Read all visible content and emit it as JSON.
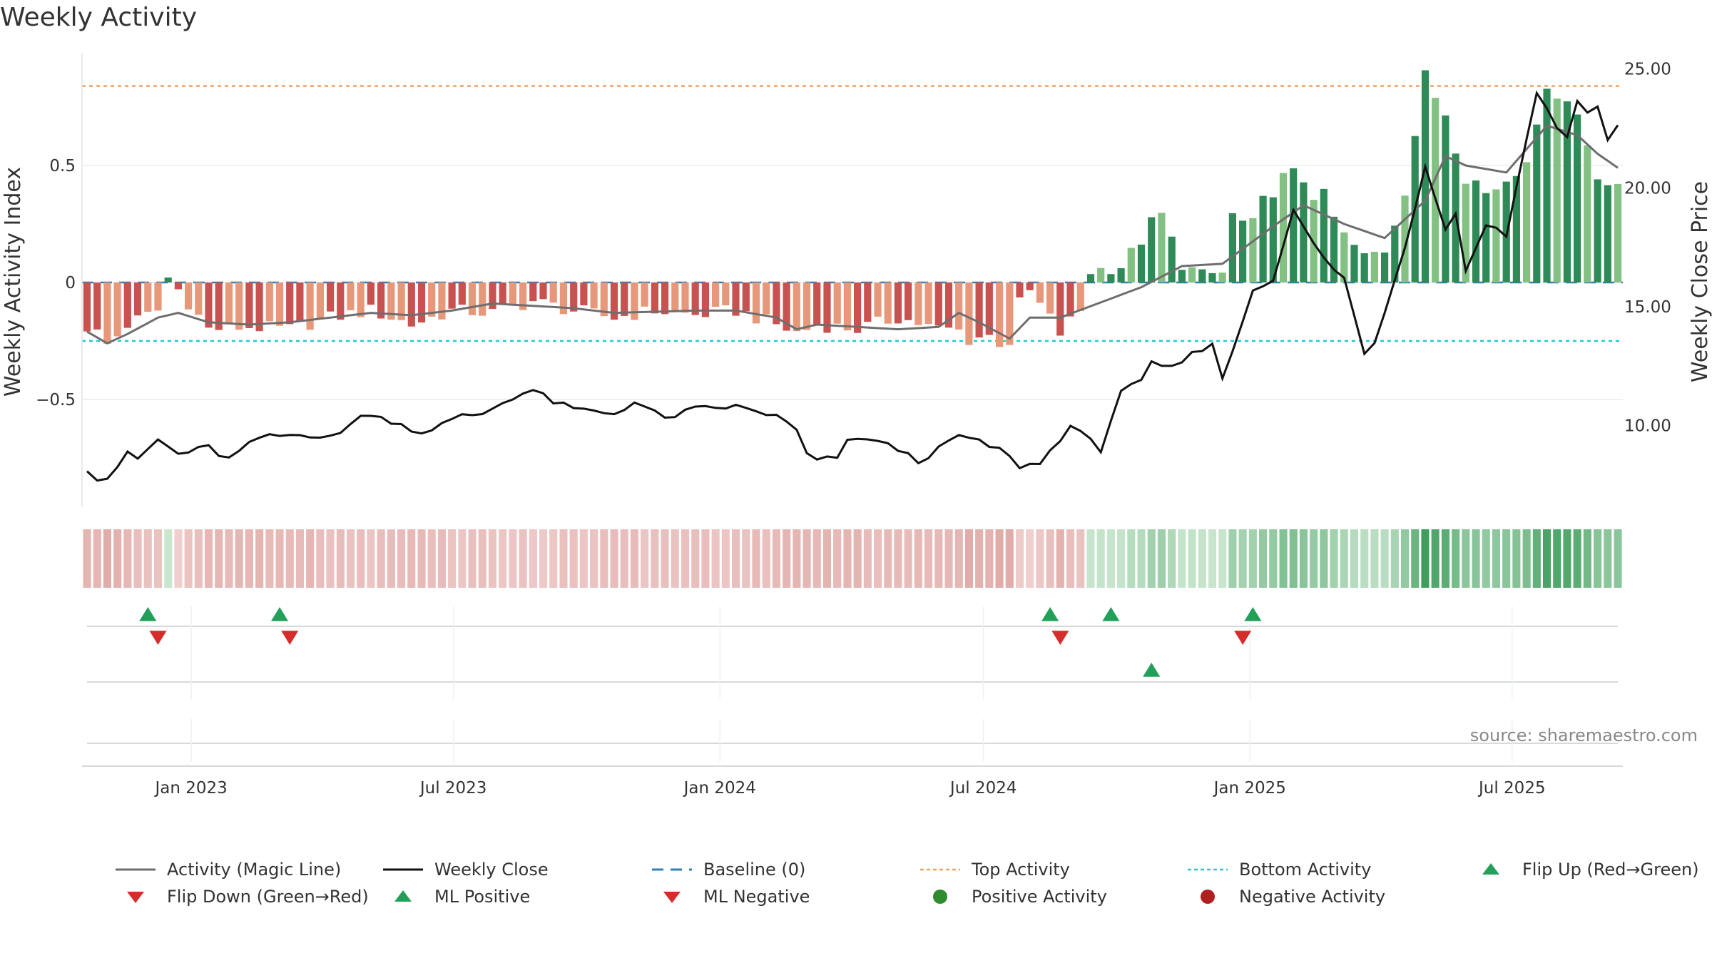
{
  "title": "Weekly Activity",
  "source": "source: sharemaestro.com",
  "colors": {
    "strong_red": "#c85250",
    "light_red": "#e8987a",
    "strong_green": "#2e8b57",
    "light_green": "#82c182",
    "magic": "#6e6e6e",
    "close": "#111111",
    "baseline": "#2f7fb8",
    "top": "#f0a060",
    "bottom": "#20c8d8",
    "flip_up": "#22a05a",
    "flip_down": "#d62c2c",
    "pos_dot": "#2e8b2e",
    "neg_dot": "#b02020"
  },
  "legend": [
    {
      "label": "Activity (Magic Line)",
      "icon": "solid-gray-line"
    },
    {
      "label": "Weekly Close",
      "icon": "solid-black-line"
    },
    {
      "label": "Baseline (0)",
      "icon": "dashed-blue-line"
    },
    {
      "label": "Top Activity",
      "icon": "dotted-orange-line"
    },
    {
      "label": "Bottom Activity",
      "icon": "dotted-cyan-line"
    },
    {
      "label": "Flip Up (Red→Green)",
      "icon": "green-up-triangle"
    },
    {
      "label": "Flip Down (Green→Red)",
      "icon": "red-down-triangle"
    },
    {
      "label": "ML Positive",
      "icon": "green-up-triangle"
    },
    {
      "label": "ML Negative",
      "icon": "red-down-triangle"
    },
    {
      "label": "Positive Activity",
      "icon": "green-dot"
    },
    {
      "label": "Negative Activity",
      "icon": "red-dot"
    }
  ],
  "chart_data": {
    "type": "bar",
    "title": "Weekly Activity",
    "ylabel": "Weekly Activity Index",
    "y2label": "Weekly Close Price",
    "ylim": [
      -0.97,
      0.97
    ],
    "y2lim": [
      6.6,
      25.65
    ],
    "yticks": [
      {
        "v": 0.5,
        "label": "0.5"
      },
      {
        "v": 0,
        "label": "0"
      },
      {
        "v": -0.5,
        "label": "−0.5"
      }
    ],
    "y2ticks": [
      "10.00",
      "15.00",
      "20.00",
      "25.00"
    ],
    "x_start": "2022-10-21",
    "x_end": "2025-09-12",
    "x_step_weeks": 1,
    "xtick_labels": [
      "Jan 2023",
      "Jul 2023",
      "Jan 2024",
      "Jul 2024",
      "Jan 2025",
      "Jul 2025"
    ],
    "xtick_dates": [
      "2023-01-01",
      "2023-07-01",
      "2024-01-01",
      "2024-07-01",
      "2025-01-01",
      "2025-07-01"
    ],
    "top_activity": 0.84,
    "bottom_activity": -0.25,
    "baseline": 0,
    "activity_anchors": [
      [
        0,
        -0.19
      ],
      [
        2,
        -0.27
      ],
      [
        4,
        -0.18
      ],
      [
        7,
        -0.12
      ],
      [
        8,
        0.02
      ],
      [
        9,
        -0.03
      ],
      [
        12,
        -0.2
      ],
      [
        16,
        -0.19
      ],
      [
        20,
        -0.2
      ],
      [
        24,
        -0.15
      ],
      [
        28,
        -0.12
      ],
      [
        32,
        -0.18
      ],
      [
        36,
        -0.12
      ],
      [
        40,
        -0.13
      ],
      [
        44,
        -0.08
      ],
      [
        48,
        -0.12
      ],
      [
        52,
        -0.15
      ],
      [
        56,
        -0.12
      ],
      [
        60,
        -0.14
      ],
      [
        64,
        -0.12
      ],
      [
        68,
        -0.18
      ],
      [
        70,
        -0.22
      ],
      [
        72,
        -0.18
      ],
      [
        76,
        -0.2
      ],
      [
        80,
        -0.15
      ],
      [
        84,
        -0.2
      ],
      [
        88,
        -0.23
      ],
      [
        91,
        -0.24
      ],
      [
        92,
        -0.09
      ],
      [
        93,
        -0.04
      ],
      [
        96,
        -0.21
      ],
      [
        98,
        -0.12
      ],
      [
        99,
        0.05
      ],
      [
        102,
        0.07
      ],
      [
        104,
        0.18
      ],
      [
        106,
        0.28
      ],
      [
        108,
        0.08
      ],
      [
        110,
        0.03
      ],
      [
        112,
        0.04
      ],
      [
        113,
        0.28
      ],
      [
        115,
        0.22
      ],
      [
        117,
        0.42
      ],
      [
        120,
        0.45
      ],
      [
        122,
        0.34
      ],
      [
        124,
        0.2
      ],
      [
        126,
        0.11
      ],
      [
        128,
        0.14
      ],
      [
        130,
        0.42
      ],
      [
        132,
        0.86
      ],
      [
        134,
        0.74
      ],
      [
        136,
        0.48
      ],
      [
        138,
        0.38
      ],
      [
        140,
        0.45
      ],
      [
        143,
        0.62
      ],
      [
        144,
        0.88
      ],
      [
        145,
        0.82
      ],
      [
        147,
        0.72
      ],
      [
        149,
        0.49
      ],
      [
        151,
        0.37
      ],
      [
        152,
        0.31
      ]
    ],
    "magic_anchors": [
      [
        0,
        -0.21
      ],
      [
        2,
        -0.26
      ],
      [
        4,
        -0.22
      ],
      [
        7,
        -0.15
      ],
      [
        9,
        -0.13
      ],
      [
        12,
        -0.17
      ],
      [
        16,
        -0.18
      ],
      [
        20,
        -0.17
      ],
      [
        24,
        -0.15
      ],
      [
        28,
        -0.13
      ],
      [
        32,
        -0.14
      ],
      [
        36,
        -0.12
      ],
      [
        40,
        -0.09
      ],
      [
        48,
        -0.11
      ],
      [
        52,
        -0.13
      ],
      [
        60,
        -0.12
      ],
      [
        64,
        -0.12
      ],
      [
        68,
        -0.15
      ],
      [
        70,
        -0.2
      ],
      [
        72,
        -0.18
      ],
      [
        80,
        -0.2
      ],
      [
        84,
        -0.19
      ],
      [
        86,
        -0.13
      ],
      [
        88,
        -0.17
      ],
      [
        91,
        -0.24
      ],
      [
        93,
        -0.15
      ],
      [
        96,
        -0.15
      ],
      [
        104,
        -0.02
      ],
      [
        108,
        0.07
      ],
      [
        112,
        0.08
      ],
      [
        117,
        0.24
      ],
      [
        120,
        0.33
      ],
      [
        124,
        0.25
      ],
      [
        128,
        0.19
      ],
      [
        132,
        0.35
      ],
      [
        134,
        0.54
      ],
      [
        136,
        0.5
      ],
      [
        140,
        0.47
      ],
      [
        143,
        0.62
      ],
      [
        144,
        0.67
      ],
      [
        147,
        0.63
      ],
      [
        149,
        0.55
      ],
      [
        152,
        0.46
      ]
    ],
    "close_anchors": [
      [
        0,
        8.2
      ],
      [
        1,
        7.8
      ],
      [
        2,
        7.8
      ],
      [
        4,
        8.8
      ],
      [
        5,
        8.6
      ],
      [
        7,
        9.4
      ],
      [
        9,
        8.8
      ],
      [
        12,
        9.1
      ],
      [
        13,
        8.8
      ],
      [
        14,
        8.6
      ],
      [
        17,
        9.5
      ],
      [
        20,
        9.6
      ],
      [
        25,
        9.6
      ],
      [
        27,
        10.5
      ],
      [
        30,
        10.2
      ],
      [
        33,
        9.7
      ],
      [
        37,
        10.4
      ],
      [
        39,
        10.5
      ],
      [
        42,
        11.2
      ],
      [
        44,
        11.5
      ],
      [
        46,
        11.0
      ],
      [
        48,
        10.7
      ],
      [
        52,
        10.5
      ],
      [
        54,
        11.0
      ],
      [
        57,
        10.3
      ],
      [
        60,
        10.7
      ],
      [
        64,
        10.8
      ],
      [
        68,
        10.4
      ],
      [
        70,
        9.8
      ],
      [
        71,
        8.8
      ],
      [
        72,
        8.5
      ],
      [
        74,
        8.7
      ],
      [
        75,
        9.3
      ],
      [
        77,
        9.5
      ],
      [
        80,
        9.0
      ],
      [
        82,
        8.5
      ],
      [
        84,
        9.0
      ],
      [
        86,
        9.6
      ],
      [
        88,
        9.3
      ],
      [
        90,
        9.0
      ],
      [
        92,
        8.3
      ],
      [
        94,
        8.4
      ],
      [
        97,
        10.0
      ],
      [
        100,
        9.0
      ],
      [
        102,
        11.5
      ],
      [
        104,
        11.8
      ],
      [
        105,
        12.6
      ],
      [
        107,
        12.4
      ],
      [
        109,
        13.0
      ],
      [
        111,
        13.5
      ],
      [
        112,
        11.9
      ],
      [
        115,
        15.7
      ],
      [
        117,
        16.2
      ],
      [
        119,
        19.0
      ],
      [
        122,
        17.0
      ],
      [
        124,
        16.2
      ],
      [
        126,
        13.0
      ],
      [
        127,
        13.5
      ],
      [
        130,
        17.5
      ],
      [
        132,
        21.0
      ],
      [
        134,
        18.2
      ],
      [
        135,
        19.0
      ],
      [
        136,
        16.5
      ],
      [
        138,
        18.5
      ],
      [
        140,
        18.0
      ],
      [
        143,
        24.1
      ],
      [
        145,
        22.5
      ],
      [
        146,
        22.2
      ],
      [
        147,
        23.6
      ],
      [
        148,
        23.1
      ],
      [
        149,
        23.5
      ],
      [
        150,
        22.0
      ],
      [
        151,
        22.6
      ],
      [
        152,
        22.4
      ]
    ],
    "close_scale": 5.6
  },
  "markers": {
    "flip_up_dates": [
      "2022-12-02",
      "2023-03-03",
      "2024-08-16",
      "2024-09-27",
      "2025-01-03"
    ],
    "flip_down_dates": [
      "2022-12-09",
      "2023-03-10",
      "2024-08-23",
      "2024-12-27"
    ],
    "ml_positive_dates": [
      "2024-10-25"
    ],
    "ml_negative_dates": []
  }
}
